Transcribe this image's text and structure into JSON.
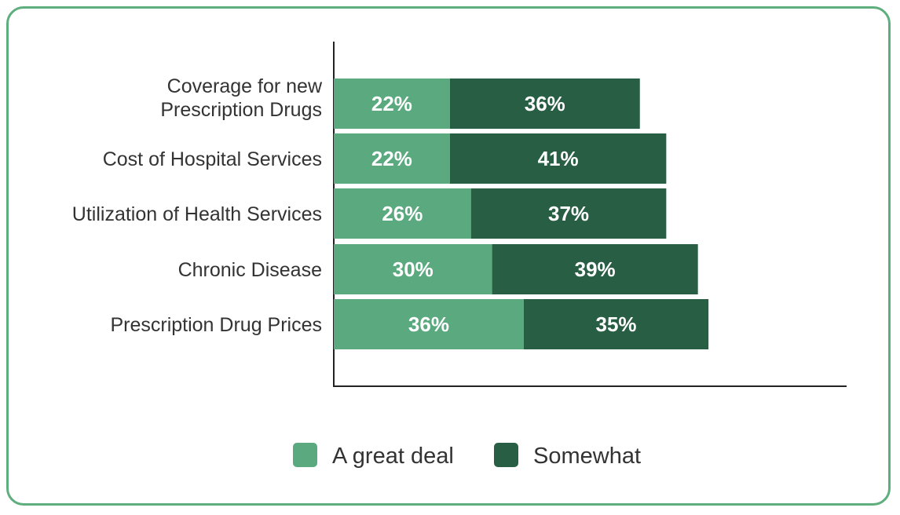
{
  "chart_data": {
    "type": "bar",
    "orientation": "horizontal",
    "stacked": true,
    "categories": [
      "Coverage for new Prescription Drugs",
      "Cost of Hospital Services",
      "Utilization of Health Services",
      "Chronic Disease",
      "Prescription Drug Prices"
    ],
    "category_lines": [
      [
        "Coverage for new",
        "Prescription Drugs"
      ],
      [
        "Cost of Hospital Services"
      ],
      [
        "Utilization of Health Services"
      ],
      [
        "Chronic Disease"
      ],
      [
        "Prescription Drug Prices"
      ]
    ],
    "series": [
      {
        "name": "A great deal",
        "color": "#5aa97f",
        "values": [
          22,
          22,
          26,
          30,
          36
        ],
        "labels": [
          "22%",
          "22%",
          "26%",
          "30%",
          "36%"
        ]
      },
      {
        "name": "Somewhat",
        "color": "#285e43",
        "values": [
          36,
          41,
          37,
          39,
          35
        ],
        "labels": [
          "36%",
          "41%",
          "37%",
          "39%",
          "35%"
        ]
      }
    ],
    "title": "",
    "xlabel": "",
    "ylabel": "",
    "grid": false,
    "legend": "bottom",
    "border_color": "#5fae7e"
  }
}
